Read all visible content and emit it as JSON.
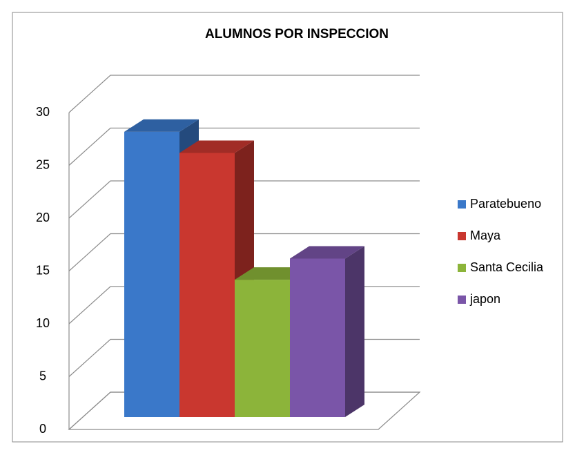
{
  "chart_data": {
    "type": "bar",
    "title": "ALUMNOS POR INSPECCION",
    "categories": [
      null
    ],
    "series": [
      {
        "name": "Paratebueno",
        "color": "#3a78c9",
        "values": [
          27
        ]
      },
      {
        "name": "Maya",
        "color": "#c9372f",
        "values": [
          25
        ]
      },
      {
        "name": "Santa Cecilia",
        "color": "#8cb43a",
        "values": [
          13
        ]
      },
      {
        "name": "japon",
        "color": "#7a55a8",
        "values": [
          15
        ]
      }
    ],
    "ylim": [
      0,
      30
    ],
    "yticks": [
      0,
      5,
      10,
      15,
      20,
      25,
      30
    ],
    "grid": true,
    "legend": "right"
  }
}
